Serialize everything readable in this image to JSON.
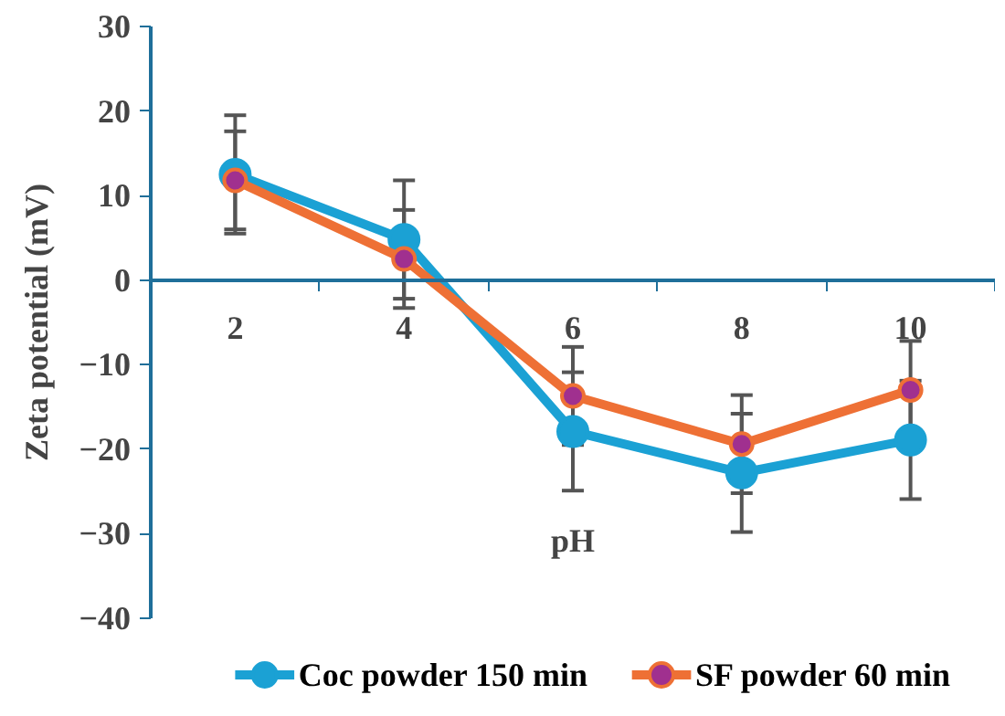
{
  "chart_data": {
    "type": "line",
    "xlabel": "pH",
    "ylabel": "Zeta potential (mV)",
    "categories": [
      "2",
      "4",
      "6",
      "8",
      "10"
    ],
    "series": [
      {
        "name": "Coc powder 150 min",
        "color": "#1ba1d4",
        "values": [
          12.5,
          4.8,
          -17.9,
          -22.8,
          -18.9
        ],
        "errors": [
          7,
          7,
          7,
          7,
          7
        ]
      },
      {
        "name": "SF powder 60 min",
        "color": "#ee7035",
        "values": [
          11.8,
          2.5,
          -13.7,
          -19.4,
          -13
        ],
        "errors": [
          5.8,
          5.8,
          5.8,
          5.8,
          5.8
        ]
      }
    ],
    "ylim": [
      -40,
      30
    ],
    "yticks": [
      -40,
      -30,
      -20,
      -10,
      0,
      10,
      20,
      30
    ],
    "grid": false,
    "legend": "bottom",
    "marker": "circle",
    "line_style": "solid"
  }
}
